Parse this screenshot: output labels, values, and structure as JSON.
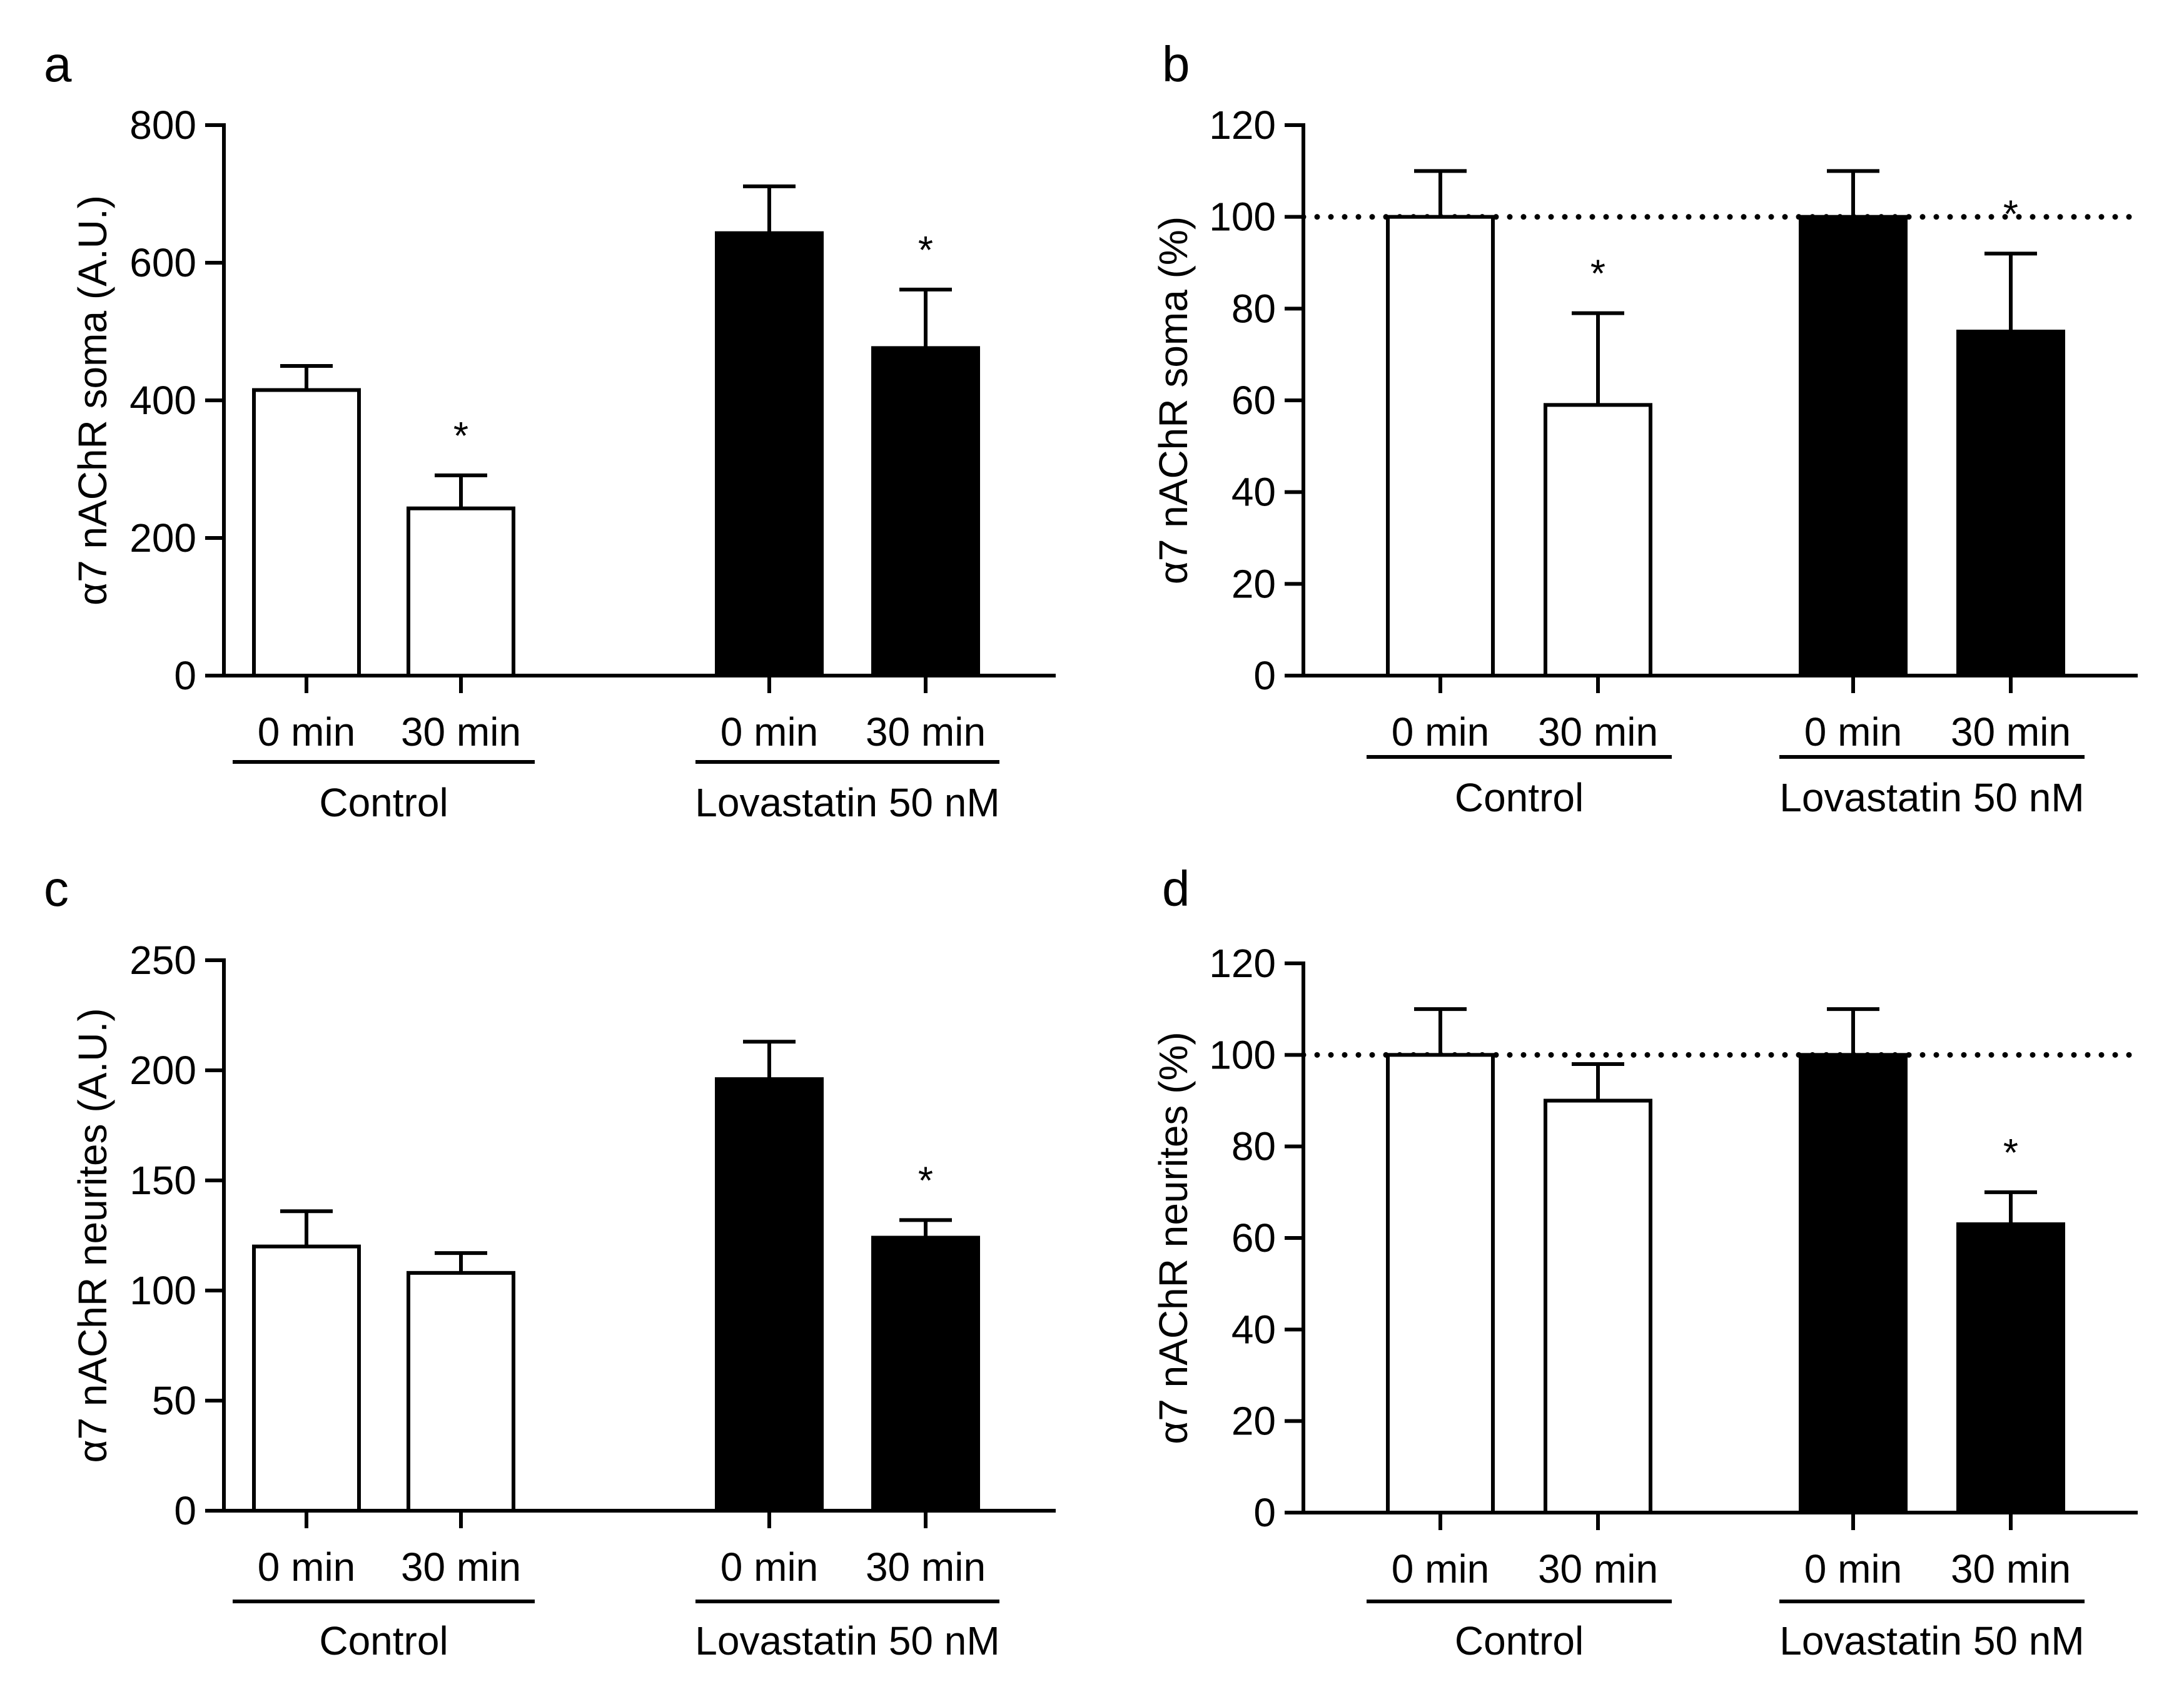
{
  "chart_data": [
    {
      "type": "bar",
      "panel_label": "a",
      "ylabel": "α7 nAChR soma (A.U.)",
      "ylim": [
        0,
        800
      ],
      "yticks": [
        0,
        200,
        400,
        600,
        800
      ],
      "reference_line": null,
      "groups": [
        {
          "name": "Control",
          "bars": [
            {
              "label": "0 min",
              "value": 415,
              "error": 35,
              "fill": "#ffffff",
              "sig": ""
            },
            {
              "label": "30 min",
              "value": 243,
              "error": 48,
              "fill": "#ffffff",
              "sig": "*"
            }
          ]
        },
        {
          "name": "Lovastatin 50 nM",
          "bars": [
            {
              "label": "0 min",
              "value": 643,
              "error": 68,
              "fill": "#000000",
              "sig": ""
            },
            {
              "label": "30 min",
              "value": 476,
              "error": 85,
              "fill": "#000000",
              "sig": "*"
            }
          ]
        }
      ]
    },
    {
      "type": "bar",
      "panel_label": "b",
      "ylabel": "α7 nAChR soma (%)",
      "ylim": [
        0,
        120
      ],
      "yticks": [
        0,
        20,
        40,
        60,
        80,
        100,
        120
      ],
      "reference_line": 100,
      "groups": [
        {
          "name": "Control",
          "bars": [
            {
              "label": "0 min",
              "value": 100,
              "error": 10,
              "fill": "#ffffff",
              "sig": ""
            },
            {
              "label": "30 min",
              "value": 59,
              "error": 20,
              "fill": "#ffffff",
              "sig": "*"
            }
          ]
        },
        {
          "name": "Lovastatin 50 nM",
          "bars": [
            {
              "label": "0 min",
              "value": 100,
              "error": 10,
              "fill": "#000000",
              "sig": ""
            },
            {
              "label": "30 min",
              "value": 75,
              "error": 17,
              "fill": "#000000",
              "sig": "*"
            }
          ]
        }
      ]
    },
    {
      "type": "bar",
      "panel_label": "c",
      "ylabel": "α7 nAChR neurites (A.U.)",
      "ylim": [
        0,
        250
      ],
      "yticks": [
        0,
        50,
        100,
        150,
        200,
        250
      ],
      "reference_line": null,
      "groups": [
        {
          "name": "Control",
          "bars": [
            {
              "label": "0 min",
              "value": 120,
              "error": 16,
              "fill": "#ffffff",
              "sig": ""
            },
            {
              "label": "30 min",
              "value": 108,
              "error": 9,
              "fill": "#ffffff",
              "sig": ""
            }
          ]
        },
        {
          "name": "Lovastatin 50 nM",
          "bars": [
            {
              "label": "0 min",
              "value": 196,
              "error": 17,
              "fill": "#000000",
              "sig": ""
            },
            {
              "label": "30 min",
              "value": 124,
              "error": 8,
              "fill": "#000000",
              "sig": "*"
            }
          ]
        }
      ]
    },
    {
      "type": "bar",
      "panel_label": "d",
      "ylabel": "α7 nAChR neurites (%)",
      "ylim": [
        0,
        120
      ],
      "yticks": [
        0,
        20,
        40,
        60,
        80,
        100,
        120
      ],
      "reference_line": 100,
      "groups": [
        {
          "name": "Control",
          "bars": [
            {
              "label": "0 min",
              "value": 100,
              "error": 10,
              "fill": "#ffffff",
              "sig": ""
            },
            {
              "label": "30 min",
              "value": 90,
              "error": 8,
              "fill": "#ffffff",
              "sig": ""
            }
          ]
        },
        {
          "name": "Lovastatin 50 nM",
          "bars": [
            {
              "label": "0 min",
              "value": 100,
              "error": 10,
              "fill": "#000000",
              "sig": ""
            },
            {
              "label": "30 min",
              "value": 63,
              "error": 7,
              "fill": "#000000",
              "sig": "*"
            }
          ]
        }
      ]
    }
  ]
}
